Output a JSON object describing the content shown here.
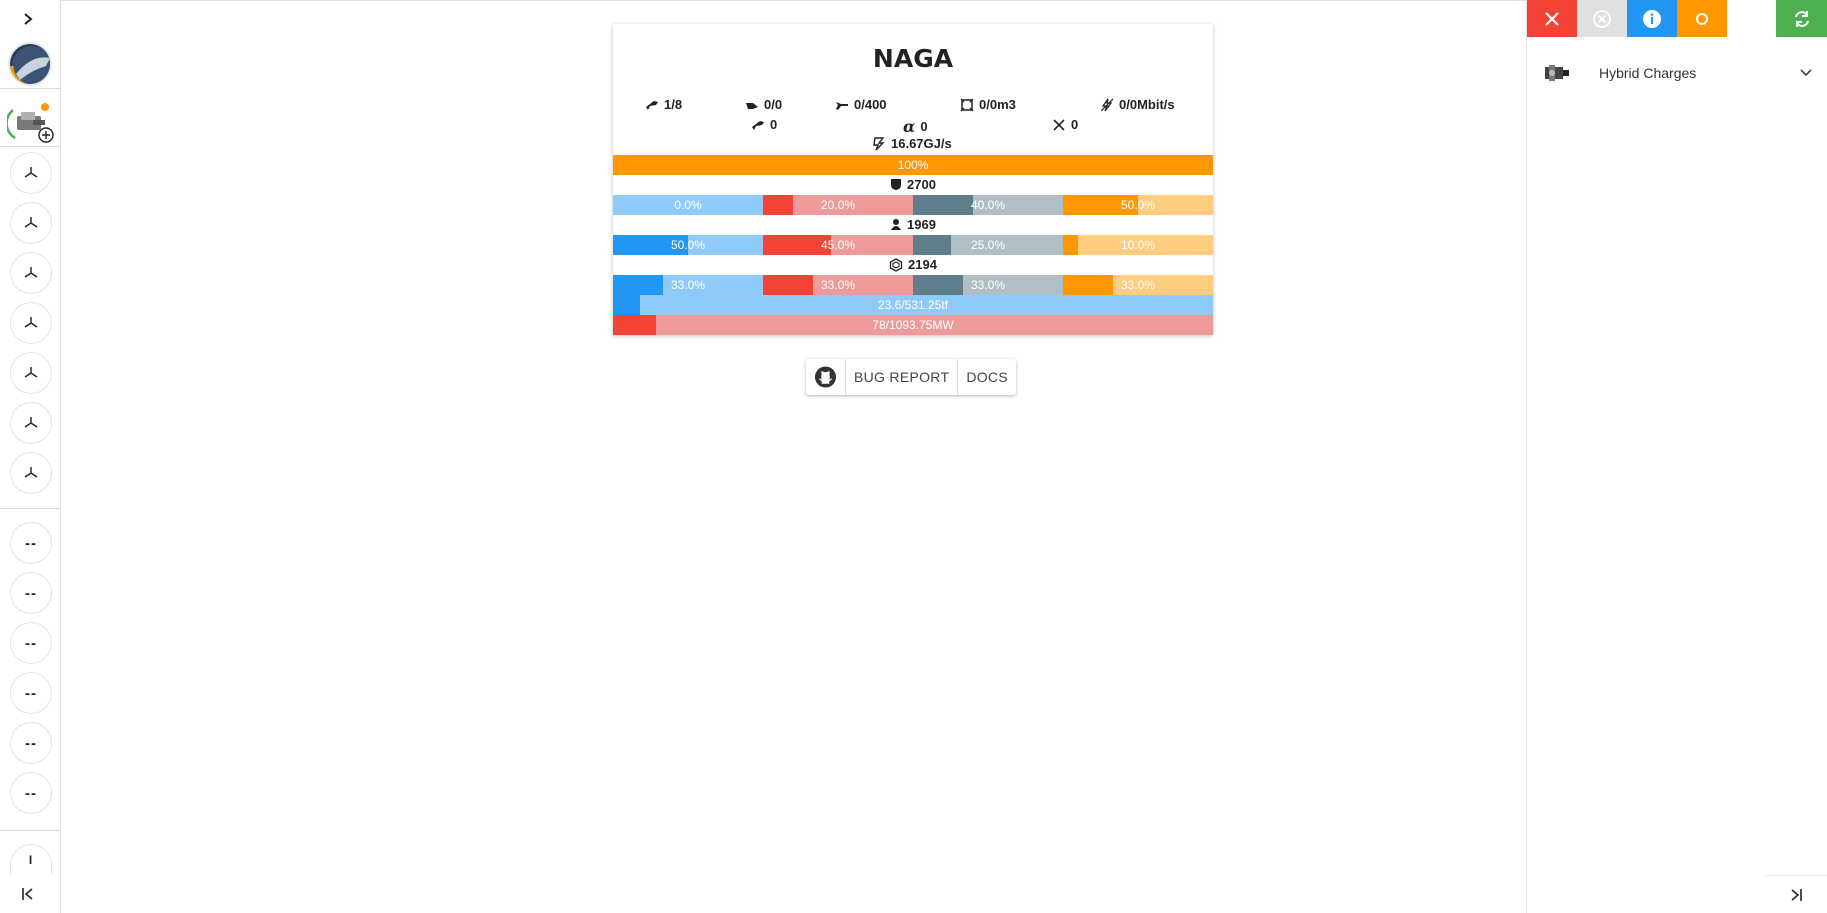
{
  "sidebar": {
    "expand_icon": "chevron-right-icon",
    "slot_placeholders": [
      "--",
      "--",
      "--",
      "--",
      "--",
      "--"
    ],
    "bottom_slot_label": "I",
    "collapse_icon": "collapse-left-icon"
  },
  "ship": {
    "name": "NAGA",
    "stats": {
      "turrets": "1/8",
      "launchers": "0/0",
      "drones": "0/400",
      "cargo": "0/0m3",
      "bandwidth": "0/0Mbit/s",
      "turret_hardpoints": "0",
      "alpha": "0",
      "cross": "0",
      "capacitor": "16.67GJ/s"
    },
    "capacitor_bar": {
      "label": "100%",
      "value": 1.0
    },
    "shield": {
      "hp": "2700",
      "resists": [
        {
          "label": "0.0%",
          "value": 0.0
        },
        {
          "label": "20.0%",
          "value": 0.2
        },
        {
          "label": "40.0%",
          "value": 0.4
        },
        {
          "label": "50.0%",
          "value": 0.5
        }
      ]
    },
    "armor": {
      "hp": "1969",
      "resists": [
        {
          "label": "50.0%",
          "value": 0.5
        },
        {
          "label": "45.0%",
          "value": 0.45
        },
        {
          "label": "25.0%",
          "value": 0.25
        },
        {
          "label": "10.0%",
          "value": 0.1
        }
      ]
    },
    "hull": {
      "hp": "2194",
      "resists": [
        {
          "label": "33.0%",
          "value": 0.33
        },
        {
          "label": "33.0%",
          "value": 0.33
        },
        {
          "label": "33.0%",
          "value": 0.33
        },
        {
          "label": "33.0%",
          "value": 0.33
        }
      ]
    },
    "cpu_bar": {
      "label": "23.6/531.25tf",
      "value": 0.0444
    },
    "power_bar": {
      "label": "78/1093.75MW",
      "value": 0.0713
    }
  },
  "resist_colors": [
    {
      "fill": "#2196f3",
      "bg": "#90caf9"
    },
    {
      "fill": "#f44336",
      "bg": "#ef9a9a"
    },
    {
      "fill": "#607d8b",
      "bg": "#b0bec5"
    },
    {
      "fill": "#ff9800",
      "bg": "#ffcc80"
    }
  ],
  "links": {
    "github_icon": "github-icon",
    "bug_report": "BUG REPORT",
    "docs": "DOCS"
  },
  "right_panel": {
    "toolbar": [
      {
        "name": "close-icon",
        "color": "#f44336"
      },
      {
        "name": "clear-icon",
        "color": "#e0e0e0"
      },
      {
        "name": "info-icon",
        "color": "#2196f3"
      },
      {
        "name": "circle-icon",
        "color": "#ff9800"
      },
      {
        "name": "refresh-icon",
        "color": "#4caf50"
      }
    ],
    "charge_label": "Hybrid Charges"
  }
}
